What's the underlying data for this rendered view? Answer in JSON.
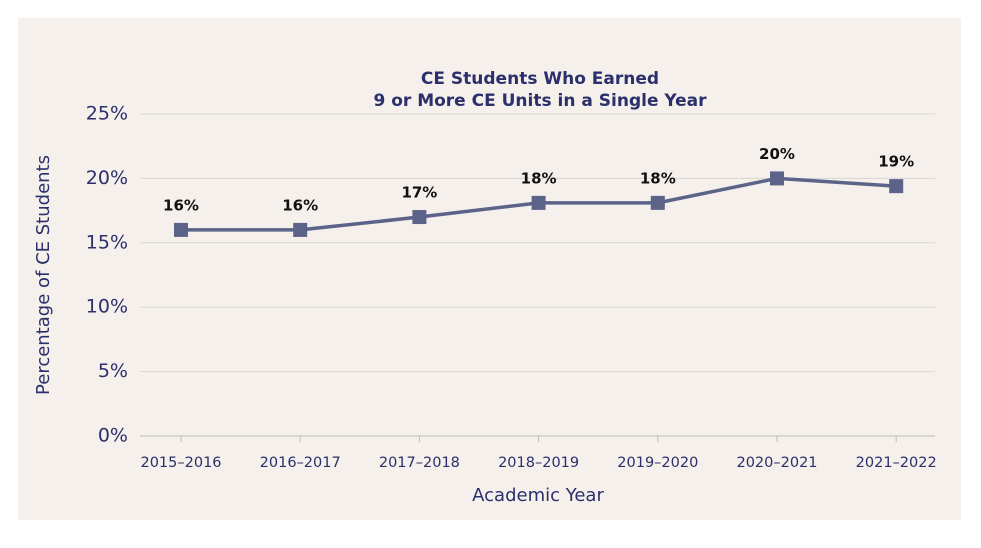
{
  "chart_data": {
    "type": "line",
    "title": [
      "CE Students Who Earned",
      "9 or More CE Units in a Single Year"
    ],
    "x_label": "Academic Year",
    "y_label": "Percentage of CE Students",
    "categories": [
      "2015–2016",
      "2016–2017",
      "2017–2018",
      "2018–2019",
      "2019–2020",
      "2020–2021",
      "2021–2022"
    ],
    "series": [
      {
        "name": "CE Students",
        "color": "#5b6389",
        "values": [
          16,
          16,
          17,
          18.1,
          18.1,
          20,
          19.4
        ],
        "value_labels": [
          "16%",
          "16%",
          "17%",
          "18%",
          "18%",
          "20%",
          "19%"
        ]
      }
    ],
    "ylim": [
      0,
      25
    ],
    "yticks": [
      {
        "value": 0,
        "label": "0%"
      },
      {
        "value": 5,
        "label": "5%"
      },
      {
        "value": 10,
        "label": "10%"
      },
      {
        "value": 15,
        "label": "15%"
      },
      {
        "value": 20,
        "label": "20%"
      },
      {
        "value": 25,
        "label": "25%"
      }
    ],
    "grid": true
  }
}
